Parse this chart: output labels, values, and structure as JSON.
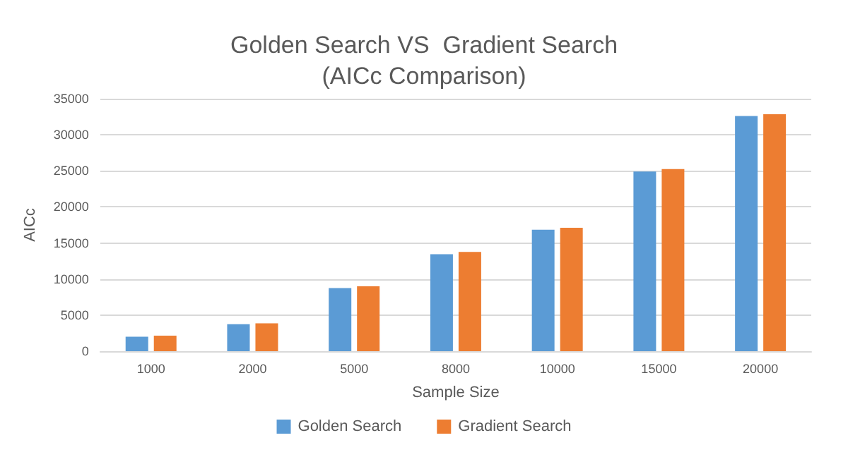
{
  "chart_data": {
    "type": "bar",
    "title": "Golden Search VS  Gradient Search\n(AICc Comparison)",
    "xlabel": "Sample Size",
    "ylabel": "AICc",
    "categories": [
      "1000",
      "2000",
      "5000",
      "8000",
      "10000",
      "15000",
      "20000"
    ],
    "series": [
      {
        "name": "Golden Search",
        "color": "#5b9bd5",
        "values": [
          2000,
          3750,
          8750,
          13450,
          16850,
          24900,
          32600
        ]
      },
      {
        "name": "Gradient Search",
        "color": "#ed7d31",
        "values": [
          2150,
          3850,
          9000,
          13750,
          17100,
          25250,
          32850
        ]
      }
    ],
    "ylim": [
      0,
      35000
    ],
    "yticks": [
      0,
      5000,
      10000,
      15000,
      20000,
      25000,
      30000,
      35000
    ],
    "grid": "y",
    "legend": "bottom"
  }
}
